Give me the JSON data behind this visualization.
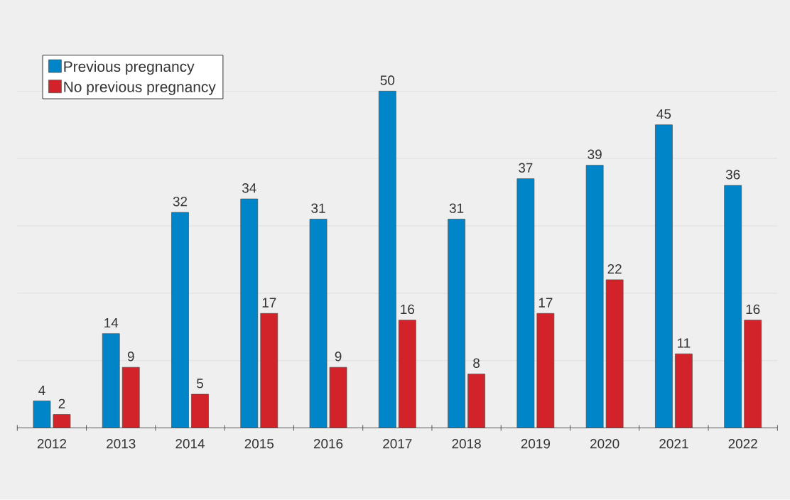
{
  "chart_data": {
    "type": "bar",
    "categories": [
      "2012",
      "2013",
      "2014",
      "2015",
      "2016",
      "2017",
      "2018",
      "2019",
      "2020",
      "2021",
      "2022"
    ],
    "series": [
      {
        "name": "Previous pregnancy",
        "color": "#0086c8",
        "values": [
          4,
          14,
          32,
          34,
          31,
          50,
          31,
          37,
          39,
          45,
          36
        ]
      },
      {
        "name": "No previous pregnancy",
        "color": "#d2232a",
        "values": [
          2,
          9,
          5,
          17,
          9,
          16,
          8,
          17,
          22,
          11,
          16
        ]
      }
    ],
    "yticks": [
      {
        "value": 0,
        "label": null
      },
      {
        "value": 10,
        "label": null
      },
      {
        "value": 20,
        "label": null
      },
      {
        "value": 30,
        "label": null
      },
      {
        "value": 40,
        "label": null
      },
      {
        "value": 50,
        "label": null
      }
    ],
    "grid": "y",
    "legend": "top left",
    "data_labels": true,
    "tick_labels": "x"
  }
}
